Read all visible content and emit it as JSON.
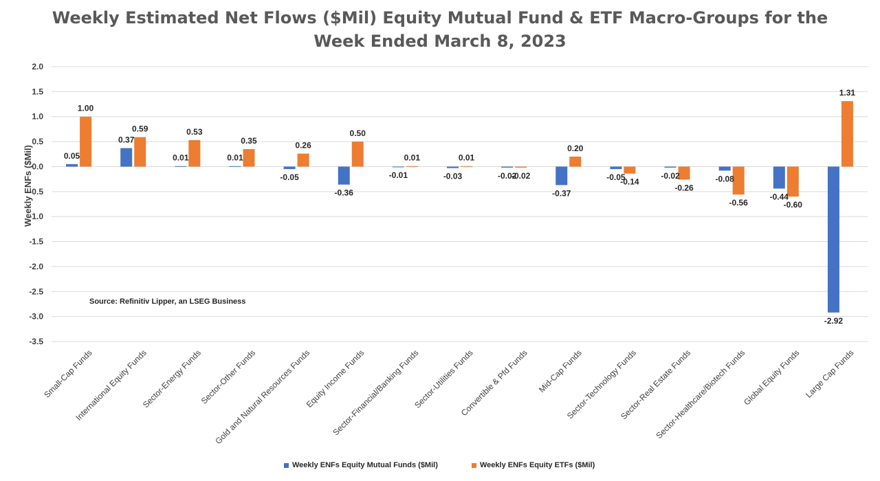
{
  "chart_data": {
    "type": "bar",
    "title_line1": "Weekly Estimated Net Flows ($Mil) Equity Mutual Fund & ETF Macro-Groups for the",
    "title_line2": "Week Ended March 8, 2023",
    "xlabel": "",
    "ylabel": "Weekly ENFs ($Mil)",
    "ylim": [
      -3.5,
      2.0
    ],
    "yticks": [
      "2.0",
      "1.5",
      "1.0",
      "0.5",
      "0.0",
      "-0.5",
      "-1.0",
      "-1.5",
      "-2.0",
      "-2.5",
      "-3.0",
      "-3.5"
    ],
    "grid": true,
    "legend_position": "bottom",
    "annotation": "Source: Refinitiv Lipper, an LSEG Business",
    "categories": [
      "Small-Cap Funds",
      "International Equity Funds",
      "Sector-Energy Funds",
      "Sector-Other Funds",
      "Gold and Natural Resources Funds",
      "Equity Income Funds",
      "Sector-Financial/Banking Funds",
      "Sector-Utilities Funds",
      "Convertible & Pfd Funds",
      "Mid-Cap Funds",
      "Sector-Technology Funds",
      "Sector-Real Estate Funds",
      "Sector-Healthcare/Biotech Funds",
      "Global Equity Funds",
      "Large Cap Funds"
    ],
    "series": [
      {
        "name": "Weekly ENFs Equity Mutual Funds ($Mil)",
        "color": "#4472C4",
        "values": [
          0.05,
          0.37,
          0.01,
          0.01,
          -0.05,
          -0.36,
          -0.01,
          -0.03,
          -0.02,
          -0.37,
          -0.05,
          -0.02,
          -0.08,
          -0.44,
          -2.92
        ],
        "labels": [
          "0.05",
          "0.37",
          "0.01",
          "0.01",
          "-0.05",
          "-0.36",
          "-0.01",
          "-0.03",
          "-0.02",
          "-0.37",
          "-0.05",
          "-0.02",
          "-0.08",
          "-0.44",
          "-2.92"
        ]
      },
      {
        "name": "Weekly ENFs Equity ETFs ($Mil)",
        "color": "#ED7D31",
        "values": [
          1.0,
          0.59,
          0.53,
          0.35,
          0.26,
          0.5,
          0.01,
          0.01,
          -0.02,
          0.2,
          -0.14,
          -0.26,
          -0.56,
          -0.6,
          1.31
        ],
        "labels": [
          "1.00",
          "0.59",
          "0.53",
          "0.35",
          "0.26",
          "0.50",
          "0.01",
          "0.01",
          "-0.02",
          "0.20",
          "-0.14",
          "-0.26",
          "-0.56",
          "-0.60",
          "1.31"
        ]
      }
    ]
  }
}
